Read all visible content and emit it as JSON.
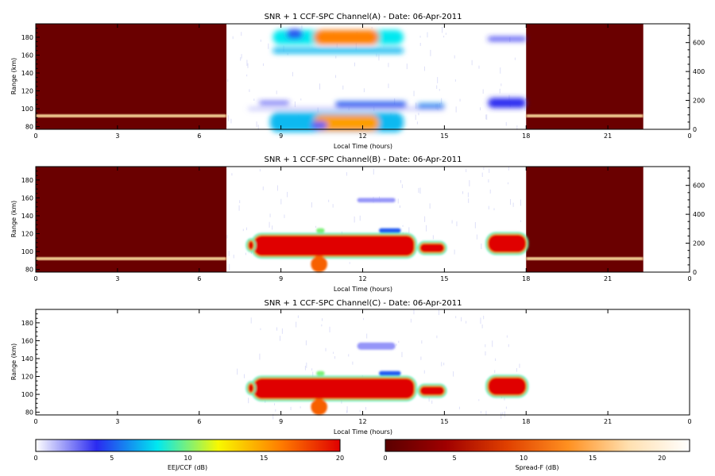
{
  "chart_data": [
    {
      "type": "heatmap",
      "title": "SNR + 1 CCF-SPC Channel(A) - Date: 06-Apr-2011",
      "xlabel": "Local Time (hours)",
      "ylabel": "Range (km)",
      "xlim": [
        0,
        24
      ],
      "ylim": [
        77,
        195
      ],
      "xticks": [
        "0",
        "3",
        "6",
        "9",
        "12",
        "15",
        "18",
        "21",
        "0"
      ],
      "yticks": [
        80,
        100,
        120,
        140,
        160,
        180
      ],
      "right_axis": {
        "ylim": [
          0,
          730
        ],
        "ticks": [
          0,
          200,
          400,
          600
        ]
      },
      "spread_f_blocks": [
        {
          "x0": 0,
          "x1": 7.0,
          "echo_range_km": 92
        },
        {
          "x0": 18,
          "x1": 22.3,
          "echo_range_km": 92
        }
      ],
      "eej_patches": [
        {
          "x0": 8.6,
          "x1": 13.5,
          "y0": 74,
          "y1": 96,
          "level_db": 7
        },
        {
          "x0": 10.2,
          "x1": 12.6,
          "y0": 75,
          "y1": 93,
          "level_db": 15
        },
        {
          "x0": 8.2,
          "x1": 9.3,
          "y0": 105,
          "y1": 108,
          "level_db": 4
        },
        {
          "x0": 11.0,
          "x1": 13.6,
          "y0": 102,
          "y1": 108,
          "level_db": 5
        },
        {
          "x0": 7.8,
          "x1": 15.0,
          "y0": 99,
          "y1": 101,
          "level_db": 2
        },
        {
          "x0": 8.7,
          "x1": 13.5,
          "y0": 162,
          "y1": 168,
          "level_db": 7
        },
        {
          "x0": 8.7,
          "x1": 13.5,
          "y0": 172,
          "y1": 188,
          "level_db": 8
        },
        {
          "x0": 10.2,
          "x1": 12.6,
          "y0": 172,
          "y1": 188,
          "level_db": 16
        },
        {
          "x0": 9.2,
          "x1": 9.8,
          "y0": 178,
          "y1": 189,
          "level_db": 5
        },
        {
          "x0": 14.0,
          "x1": 15.0,
          "y0": 101,
          "y1": 106,
          "level_db": 6
        },
        {
          "x0": 16.6,
          "x1": 18.0,
          "y0": 101,
          "y1": 112,
          "level_db": 4
        },
        {
          "x0": 16.6,
          "x1": 18.0,
          "y0": 176,
          "y1": 180,
          "level_db": 4
        },
        {
          "x0": 10.1,
          "x1": 10.7,
          "y0": 77,
          "y1": 86,
          "level_db": 3
        }
      ]
    },
    {
      "type": "heatmap",
      "title": "SNR + 1 CCF-SPC Channel(B) - Date: 06-Apr-2011",
      "xlabel": "Local Time (hours)",
      "ylabel": "Range (km)",
      "xlim": [
        0,
        24
      ],
      "ylim": [
        77,
        195
      ],
      "xticks": [
        "0",
        "3",
        "6",
        "9",
        "12",
        "15",
        "18",
        "21",
        "0"
      ],
      "yticks": [
        80,
        100,
        120,
        140,
        160,
        180
      ],
      "right_axis": {
        "ylim": [
          0,
          730
        ],
        "ticks": [
          0,
          200,
          400,
          600
        ]
      },
      "spread_f_blocks": [
        {
          "x0": 0,
          "x1": 7.0,
          "echo_range_km": 92
        },
        {
          "x0": 18,
          "x1": 22.3,
          "echo_range_km": 92
        }
      ],
      "eej_patches": [
        {
          "x0": 8.0,
          "x1": 13.9,
          "y0": 95,
          "y1": 118,
          "level_db": 20
        },
        {
          "x0": 7.8,
          "x1": 8.0,
          "y0": 102,
          "y1": 112,
          "level_db": 20
        },
        {
          "x0": 14.1,
          "x1": 15.0,
          "y0": 99,
          "y1": 109,
          "level_db": 20
        },
        {
          "x0": 16.6,
          "x1": 18.0,
          "y0": 99,
          "y1": 119,
          "level_db": 20
        },
        {
          "x0": 10.1,
          "x1": 10.7,
          "y0": 77,
          "y1": 95,
          "level_db": 17
        },
        {
          "x0": 10.3,
          "x1": 10.6,
          "y0": 121,
          "y1": 126,
          "level_db": 10
        },
        {
          "x0": 12.6,
          "x1": 13.4,
          "y0": 121,
          "y1": 126,
          "level_db": 5
        },
        {
          "x0": 11.8,
          "x1": 13.2,
          "y0": 155,
          "y1": 160,
          "level_db": 2
        }
      ]
    },
    {
      "type": "heatmap",
      "title": "SNR + 1 CCF-SPC Channel(C) - Date: 06-Apr-2011",
      "xlabel": "Local Time (hours)",
      "ylabel": "Range (km)",
      "xlim": [
        0,
        24
      ],
      "ylim": [
        77,
        195
      ],
      "xticks": [
        "0",
        "3",
        "6",
        "9",
        "12",
        "15",
        "18",
        "21",
        "0"
      ],
      "yticks": [
        80,
        100,
        120,
        140,
        160,
        180
      ],
      "eej_patches": [
        {
          "x0": 8.0,
          "x1": 13.9,
          "y0": 95,
          "y1": 118,
          "level_db": 20
        },
        {
          "x0": 7.8,
          "x1": 8.0,
          "y0": 102,
          "y1": 112,
          "level_db": 20
        },
        {
          "x0": 14.1,
          "x1": 15.0,
          "y0": 99,
          "y1": 109,
          "level_db": 20
        },
        {
          "x0": 16.6,
          "x1": 18.0,
          "y0": 99,
          "y1": 119,
          "level_db": 20
        },
        {
          "x0": 10.1,
          "x1": 10.7,
          "y0": 77,
          "y1": 95,
          "level_db": 17
        },
        {
          "x0": 10.3,
          "x1": 10.6,
          "y0": 121,
          "y1": 126,
          "level_db": 10
        },
        {
          "x0": 12.6,
          "x1": 13.4,
          "y0": 121,
          "y1": 126,
          "level_db": 5
        },
        {
          "x0": 11.8,
          "x1": 13.2,
          "y0": 150,
          "y1": 158,
          "level_db": 2
        }
      ]
    }
  ],
  "colorbars": [
    {
      "label": "EEJ/CCF (dB)",
      "ticks": [
        0,
        5,
        10,
        15,
        20
      ],
      "range": [
        0,
        20
      ],
      "colors": [
        "#ffffff",
        "#2a2af0",
        "#00e8f0",
        "#f8f800",
        "#ff8000",
        "#e00000"
      ]
    },
    {
      "label": "Spread-F (dB)",
      "ticks": [
        0,
        5,
        10,
        15,
        20
      ],
      "range": [
        0,
        22
      ],
      "colors": [
        "#5a0000",
        "#a00000",
        "#e04000",
        "#ff9020",
        "#ffe0b0",
        "#ffffff"
      ]
    }
  ],
  "colors": {
    "spread_f_background": "#6a0000",
    "spread_f_echo": "#ffe0a0"
  }
}
